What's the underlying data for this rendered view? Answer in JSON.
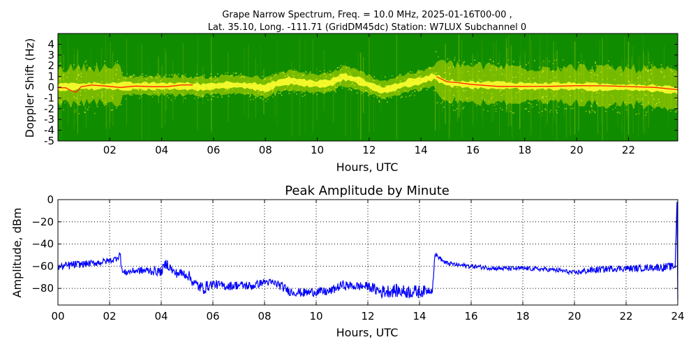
{
  "chart_data": [
    {
      "type": "heatmap",
      "title_line1": "Grape Narrow Spectrum, Freq. = 10.0 MHz, 2025-01-16T00-00 ,",
      "title_line2": "Lat.  35.10, Long. -111.71 (GridDM45dc) Station: W7LUX Subchannel 0",
      "xlabel": "Hours, UTC",
      "ylabel": "Doppler Shift (Hz)",
      "xlim": [
        0,
        23.9
      ],
      "ylim": [
        -5,
        5
      ],
      "xticks": [
        "02",
        "04",
        "06",
        "08",
        "10",
        "12",
        "14",
        "16",
        "18",
        "20",
        "22"
      ],
      "yticks": [
        "4",
        "3",
        "2",
        "1",
        "0",
        "-1",
        "-2",
        "-3",
        "-4",
        "-5"
      ],
      "colors": {
        "background": "#108c00",
        "noise": "#3aa000",
        "spread": "#c8e000",
        "core": "#ffff30",
        "peak": "#ff2000"
      },
      "peak_trace": [
        [
          0,
          0
        ],
        [
          0.3,
          -0.1
        ],
        [
          0.5,
          -0.3
        ],
        [
          0.7,
          -0.5
        ],
        [
          0.9,
          0.1
        ],
        [
          1.3,
          0.2
        ],
        [
          1.8,
          0.1
        ],
        [
          2.4,
          0.0
        ],
        [
          3,
          0.1
        ],
        [
          3.6,
          0.1
        ],
        [
          4.2,
          0.1
        ],
        [
          4.8,
          0.2
        ],
        [
          5.2,
          0.2
        ],
        [
          14.6,
          1.0
        ],
        [
          15.0,
          0.5
        ],
        [
          15.4,
          0.4
        ],
        [
          16,
          0.2
        ],
        [
          17,
          0.1
        ],
        [
          18,
          0.1
        ],
        [
          19,
          0.1
        ],
        [
          20,
          0.1
        ],
        [
          21,
          0.1
        ],
        [
          22,
          0.1
        ],
        [
          23,
          0.0
        ],
        [
          23.9,
          -0.2
        ]
      ],
      "signal_band": [
        [
          0,
          0
        ],
        [
          1,
          0.1
        ],
        [
          2,
          0.1
        ],
        [
          3,
          0.1
        ],
        [
          4,
          0.1
        ],
        [
          5,
          0.1
        ],
        [
          5.5,
          0.0
        ],
        [
          6,
          0.1
        ],
        [
          6.5,
          0.2
        ],
        [
          7,
          0.2
        ],
        [
          7.5,
          0.1
        ],
        [
          8,
          -0.1
        ],
        [
          8.5,
          0.4
        ],
        [
          9,
          0.6
        ],
        [
          9.5,
          0.4
        ],
        [
          10,
          0.3
        ],
        [
          10.5,
          0.4
        ],
        [
          11,
          1.0
        ],
        [
          11.5,
          0.7
        ],
        [
          12,
          0.2
        ],
        [
          12.5,
          -0.3
        ],
        [
          13,
          0.0
        ],
        [
          13.5,
          0.4
        ],
        [
          14,
          0.6
        ],
        [
          14.5,
          1.0
        ],
        [
          15,
          0.4
        ],
        [
          16,
          0.2
        ],
        [
          17,
          0.2
        ],
        [
          18,
          0.1
        ],
        [
          19,
          0.1
        ],
        [
          20,
          0.1
        ],
        [
          21,
          0.0
        ],
        [
          22,
          0.0
        ],
        [
          23,
          -0.1
        ],
        [
          23.9,
          -0.3
        ]
      ]
    },
    {
      "type": "line",
      "title": "Peak Amplitude by Minute",
      "xlabel": "Hours, UTC",
      "ylabel": "Amplitude, dBm",
      "xlim": [
        0,
        24
      ],
      "ylim": [
        -95,
        0
      ],
      "xticks": [
        "00",
        "02",
        "04",
        "06",
        "08",
        "10",
        "12",
        "14",
        "16",
        "18",
        "20",
        "22",
        "24"
      ],
      "yticks": [
        "0",
        "−20",
        "−40",
        "−60",
        "−80"
      ],
      "grid": true,
      "series": [
        {
          "color": "#0000ff",
          "x": [
            0,
            0.5,
            1,
            1.5,
            2,
            2.2,
            2.4,
            2.5,
            3,
            3.5,
            4,
            4.2,
            4.5,
            5,
            5.3,
            5.6,
            6,
            6.5,
            7,
            7.5,
            8,
            8.5,
            9,
            9.5,
            10,
            10.5,
            11,
            11.5,
            12,
            12.5,
            13,
            13.5,
            14,
            14.5,
            14.6,
            15,
            15.5,
            16,
            17,
            18,
            19,
            19.5,
            20,
            20.5,
            21,
            21.5,
            22,
            22.5,
            23,
            23.5,
            23.9,
            23.97,
            24
          ],
          "y": [
            -61,
            -59,
            -58,
            -57,
            -55,
            -54,
            -49,
            -66,
            -64,
            -64,
            -65,
            -57,
            -66,
            -67,
            -76,
            -80,
            -76,
            -78,
            -77,
            -78,
            -74,
            -76,
            -83,
            -84,
            -83,
            -83,
            -77,
            -78,
            -78,
            -83,
            -82,
            -83,
            -83,
            -81,
            -49,
            -57,
            -59,
            -60,
            -62,
            -62,
            -63,
            -64,
            -66,
            -64,
            -63,
            -62,
            -62,
            -62,
            -61,
            -61,
            -60,
            -2,
            -90
          ],
          "noise": [
            3,
            4,
            3,
            3,
            3,
            3,
            4,
            3,
            3,
            4,
            4,
            5,
            4,
            5,
            5,
            6,
            4,
            4,
            4,
            4,
            3,
            4,
            4,
            4,
            4,
            4,
            4,
            4,
            4,
            6,
            6,
            6,
            6,
            3,
            2,
            2,
            2,
            2,
            2,
            2,
            2,
            2,
            2,
            3,
            3,
            3,
            3,
            3,
            3,
            4,
            3,
            0,
            0
          ]
        }
      ]
    }
  ]
}
